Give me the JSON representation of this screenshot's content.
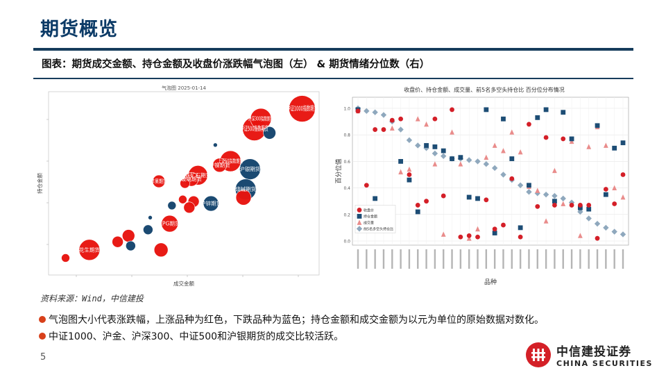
{
  "header": {
    "title": "期货概览",
    "subtitle": "图表：期货成交金额、持仓金额及收盘价涨跌幅气泡图（左） & 期货情绪分位数（右）"
  },
  "colors": {
    "up": "#e8140f",
    "down": "#14456e",
    "accent": "#d8401a",
    "brand": "#d42027"
  },
  "chart_data": [
    {
      "type": "scatter",
      "title": "气泡图  2025-01-14",
      "xlabel": "成交金额",
      "ylabel": "持仓金额",
      "points": [
        {
          "label": "中证1000指数期货",
          "x": 28.4,
          "y": 27.6,
          "r": 19,
          "color": "up"
        },
        {
          "label": "沪深300指数期货",
          "x": 26.5,
          "y": 27.1,
          "r": 15,
          "color": "up"
        },
        {
          "label": "中证500指数期货",
          "x": 26.2,
          "y": 26.6,
          "r": 17,
          "color": "up"
        },
        {
          "label": "",
          "x": 26.9,
          "y": 26.4,
          "r": 9,
          "color": "down"
        },
        {
          "label": "",
          "x": 24.4,
          "y": 25.8,
          "r": 3,
          "color": "down"
        },
        {
          "label": "上证50指数期货",
          "x": 25.1,
          "y": 25.0,
          "r": 15,
          "color": "up"
        },
        {
          "label": "沪银期货",
          "x": 26.0,
          "y": 24.6,
          "r": 15,
          "color": "down"
        },
        {
          "label": "铁矿石期货",
          "x": 23.6,
          "y": 24.3,
          "r": 14,
          "color": "up"
        },
        {
          "label": "沪镍期货",
          "x": 24.6,
          "y": 24.8,
          "r": 10,
          "color": "up"
        },
        {
          "label": "玻璃期货",
          "x": 23.3,
          "y": 24.1,
          "r": 10,
          "color": "up"
        },
        {
          "label": "苹果期货",
          "x": 21.8,
          "y": 24.0,
          "r": 9,
          "color": "up"
        },
        {
          "label": "",
          "x": 23.0,
          "y": 23.9,
          "r": 7,
          "color": "up"
        },
        {
          "label": "烧碱期货",
          "x": 25.8,
          "y": 23.6,
          "r": 15,
          "color": "down"
        },
        {
          "label": "",
          "x": 25.7,
          "y": 23.2,
          "r": 11,
          "color": "up"
        },
        {
          "label": "沪锌期货",
          "x": 24.2,
          "y": 22.9,
          "r": 11,
          "color": "down"
        },
        {
          "label": "",
          "x": 23.4,
          "y": 23.0,
          "r": 8,
          "color": "up"
        },
        {
          "label": "",
          "x": 22.9,
          "y": 23.1,
          "r": 6,
          "color": "up"
        },
        {
          "label": "",
          "x": 23.2,
          "y": 22.7,
          "r": 8,
          "color": "up"
        },
        {
          "label": "",
          "x": 22.4,
          "y": 22.8,
          "r": 6,
          "color": "down"
        },
        {
          "label": "LPG期货",
          "x": 22.3,
          "y": 21.9,
          "r": 12,
          "color": "up"
        },
        {
          "label": "",
          "x": 21.4,
          "y": 22.2,
          "r": 3,
          "color": "down"
        },
        {
          "label": "",
          "x": 21.3,
          "y": 21.6,
          "r": 7,
          "color": "down"
        },
        {
          "label": "",
          "x": 20.4,
          "y": 21.3,
          "r": 9,
          "color": "up"
        },
        {
          "label": "",
          "x": 19.9,
          "y": 21.0,
          "r": 8,
          "color": "up"
        },
        {
          "label": "",
          "x": 20.5,
          "y": 20.8,
          "r": 7,
          "color": "down"
        },
        {
          "label": "",
          "x": 21.9,
          "y": 20.6,
          "r": 10,
          "color": "up"
        },
        {
          "label": "花生期货",
          "x": 18.6,
          "y": 20.6,
          "r": 15,
          "color": "up"
        },
        {
          "label": "",
          "x": 17.5,
          "y": 20.2,
          "r": 6,
          "color": "up"
        }
      ]
    },
    {
      "type": "scatter",
      "title": "收盘价、持仓金额、成交量、前5名多空头持仓比 百分位分布情况",
      "xlabel": "品种",
      "ylabel": "百分位值",
      "ylim": [
        0,
        1
      ],
      "y_ticks": [
        "0.0",
        "0.2",
        "0.4",
        "0.6",
        "0.8",
        "1.0"
      ],
      "legend": {
        "position": "bottom-left",
        "entries": [
          "收盘价",
          "持仓金额",
          "成交量",
          "前5名多空头持仓比"
        ]
      },
      "series": [
        {
          "name": "收盘价",
          "marker": "circle",
          "color": "#d41f28",
          "values": [
            0.98,
            0.42,
            0.84,
            0.84,
            0.91,
            0.92,
            0.5,
            0.27,
            0.3,
            0.92,
            0.34,
            0.99,
            0.03,
            0.04,
            0.03,
            0.31,
            0.09,
            0.12,
            0.47,
            0.03,
            0.88,
            0.26,
            0.78,
            0.27,
            0.77,
            0.27,
            0.27,
            0.27,
            0.02,
            0.39,
            0.28,
            0.5
          ]
        },
        {
          "name": "持仓金额",
          "marker": "square",
          "color": "#1d4d75",
          "values": [
            0.99,
            0.18,
            0.32,
            0.11,
            0.22,
            0.6,
            0.46,
            0.22,
            0.72,
            0.71,
            0.68,
            0.62,
            0.63,
            0.33,
            0.32,
            0.99,
            0.06,
            0.92,
            0.62,
            0.1,
            0.42,
            0.93,
            0.99,
            0.3,
            0.97,
            0.77,
            0.25,
            0.24,
            0.87,
            0.35,
            0.7,
            0.74
          ]
        },
        {
          "name": "成交量",
          "marker": "triangle",
          "color": "#e98c8b",
          "values": [
            0.98,
            0.12,
            0.23,
            0.12,
            0.85,
            0.52,
            0.54,
            0.92,
            0.88,
            0.58,
            0.05,
            0.82,
            0.58,
            0.02,
            0.09,
            0.63,
            0.72,
            0.68,
            0.82,
            0.67,
            0.41,
            0.38,
            0.15,
            0.53,
            0.28,
            0.75,
            0.04,
            0.71,
            0.86,
            0.72,
            0.4,
            0.33
          ]
        },
        {
          "name": "前5名多空头持仓比",
          "marker": "diamond",
          "color": "#8fa8bd",
          "values": [
            1.0,
            0.98,
            0.97,
            0.95,
            0.9,
            0.84,
            0.76,
            0.72,
            0.7,
            0.66,
            0.64,
            0.62,
            0.62,
            0.61,
            0.6,
            0.58,
            0.55,
            0.5,
            0.46,
            0.42,
            0.37,
            0.36,
            0.35,
            0.34,
            0.32,
            0.29,
            0.22,
            0.17,
            0.13,
            0.1,
            0.07,
            0.05
          ]
        }
      ]
    }
  ],
  "footer": {
    "source": "资料来源：Wind，中信建投",
    "bullet1": "气泡图大小代表涨跌幅，上涨品种为红色，下跌品种为蓝色；持仓金额和成交金额为以元为单位的原始数据对数化。",
    "bullet2": "中证1000、沪金、沪深300、中证500和沪银期货的成交比较活跃。",
    "page": "5",
    "logo_cn": "中信建投证券",
    "logo_en": "CHINA SECURITIES"
  }
}
